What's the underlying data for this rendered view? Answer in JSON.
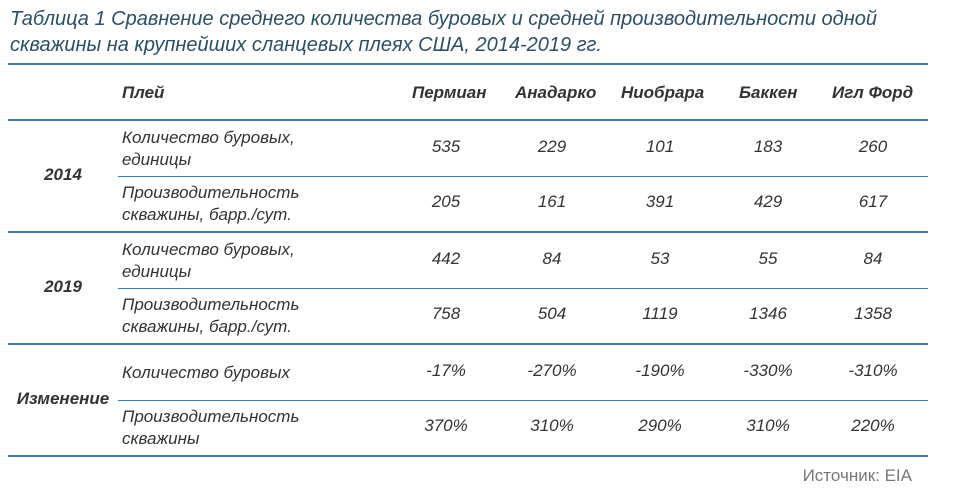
{
  "caption": "Таблица 1 Сравнение среднего количества буровых и средней производительности одной скважины на крупнейших сланцевых плеях США, 2014-2019 гг.",
  "header": {
    "play": "Плей",
    "cols": [
      "Пермиан",
      "Анадарко",
      "Ниобрара",
      "Баккен",
      "Игл Форд"
    ]
  },
  "groups": [
    {
      "label": "2014",
      "rows": [
        {
          "label_line1": "Количество буровых,",
          "label_line2": "единицы",
          "values": [
            "535",
            "229",
            "101",
            "183",
            "260"
          ]
        },
        {
          "label_line1": "Производительность",
          "label_line2": "скважины, барр./сут.",
          "values": [
            "205",
            "161",
            "391",
            "429",
            "617"
          ]
        }
      ]
    },
    {
      "label": "2019",
      "rows": [
        {
          "label_line1": "Количество буровых,",
          "label_line2": "единицы",
          "values": [
            "442",
            "84",
            "53",
            "55",
            "84"
          ]
        },
        {
          "label_line1": "Производительность",
          "label_line2": "скважины, барр./сут.",
          "values": [
            "758",
            "504",
            "1119",
            "1346",
            "1358"
          ]
        }
      ]
    },
    {
      "label": "Изменение",
      "rows": [
        {
          "label_line1": "Количество буровых",
          "label_line2": "",
          "values": [
            "-17%",
            "-270%",
            "-190%",
            "-330%",
            "-310%"
          ]
        },
        {
          "label_line1": "Производительность",
          "label_line2": "скважины",
          "values": [
            "370%",
            "310%",
            "290%",
            "310%",
            "220%"
          ]
        }
      ]
    }
  ],
  "source": "Источник: EIA"
}
